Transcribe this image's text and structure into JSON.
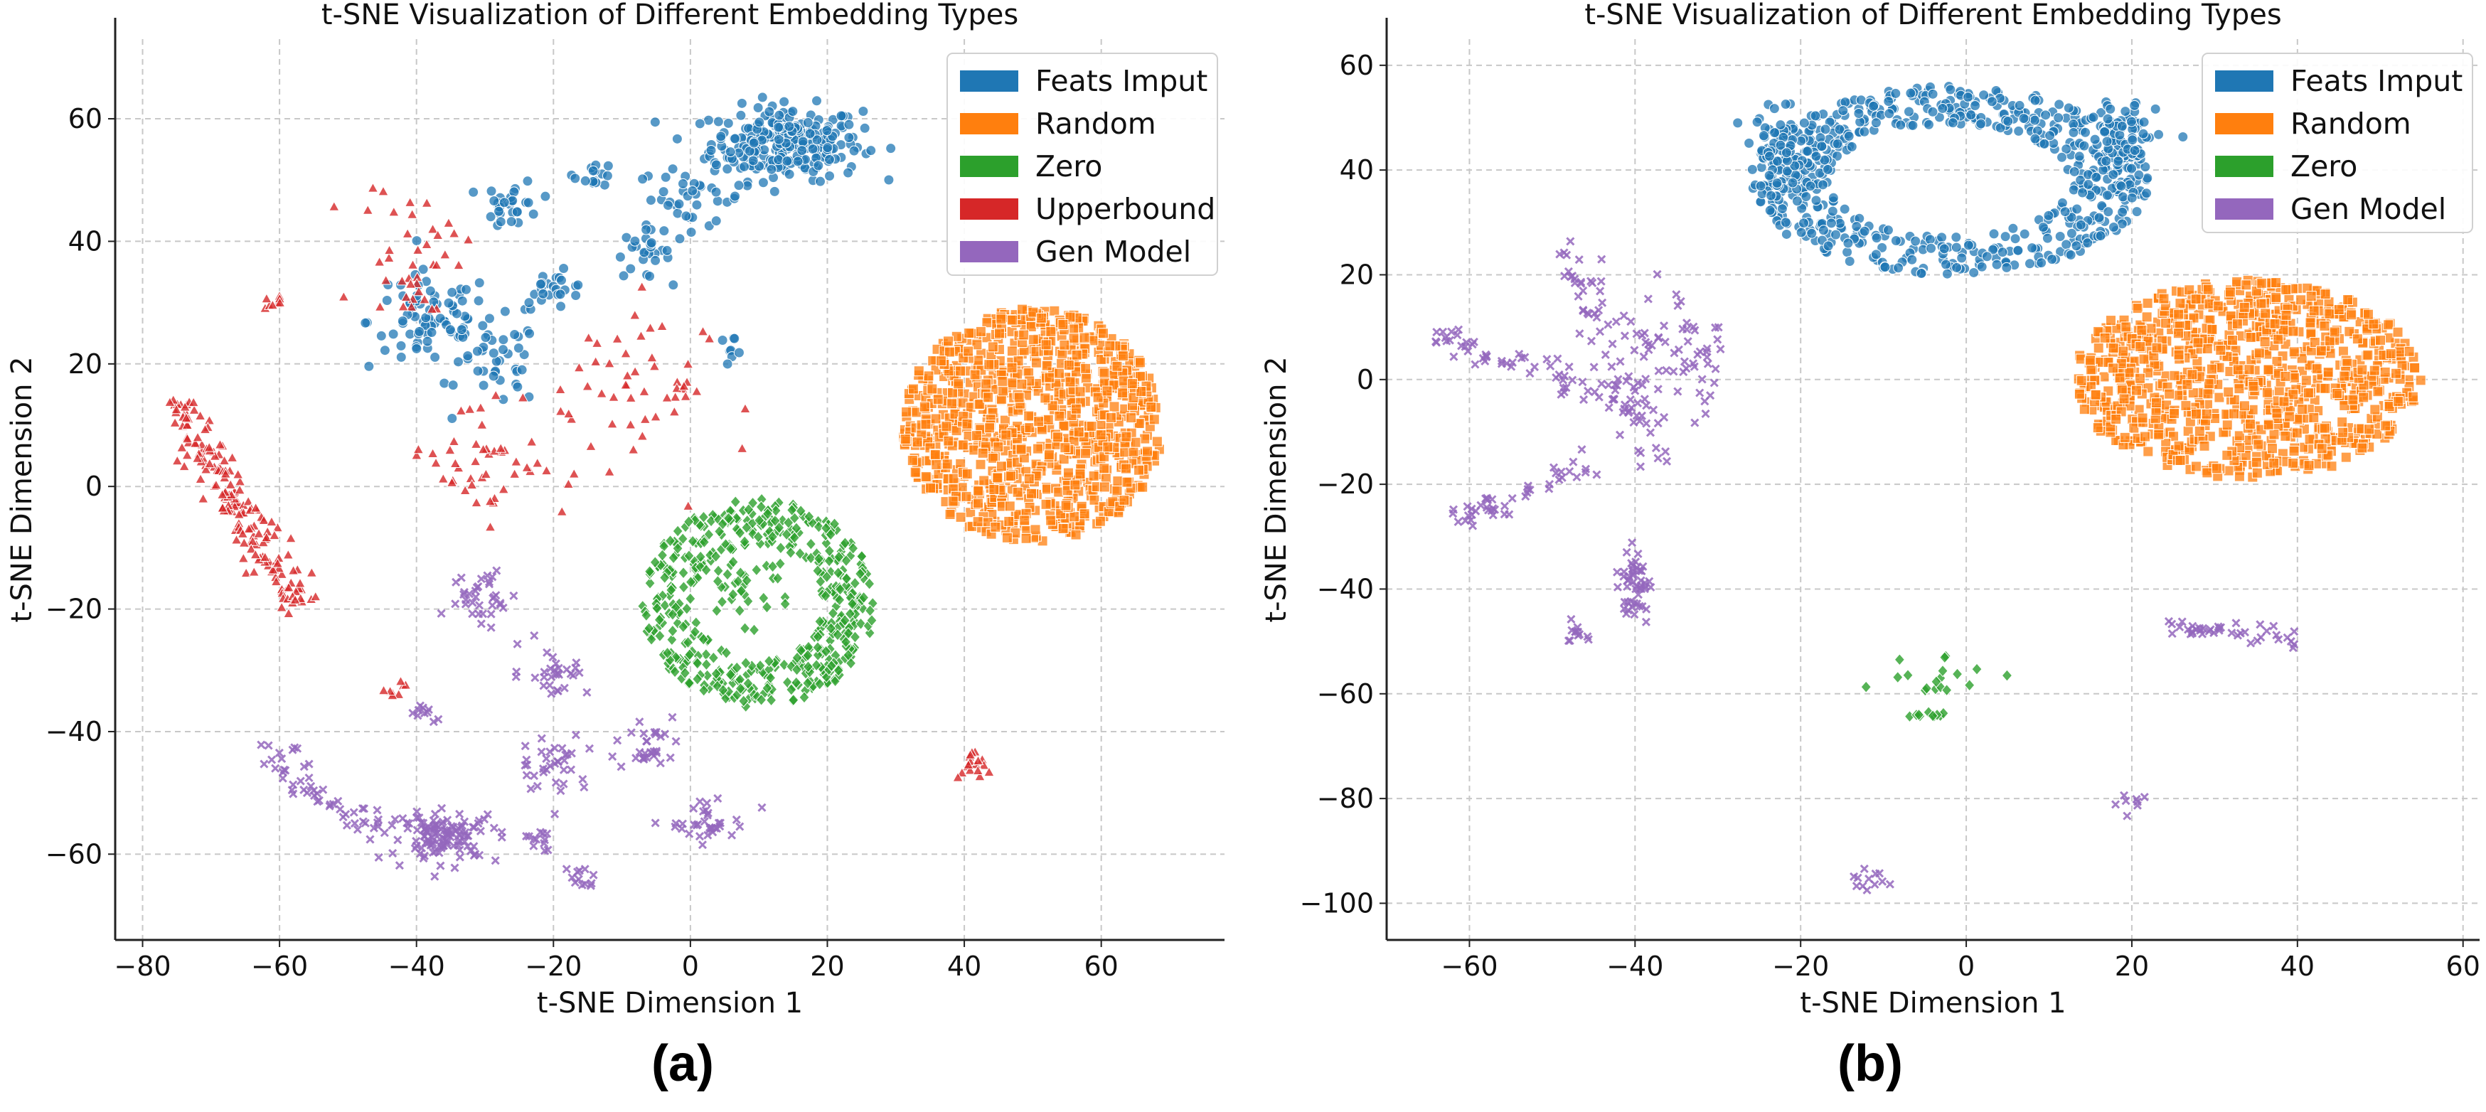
{
  "colors": {
    "Feats Imput": "#1f77b4",
    "Random": "#ff7f0e",
    "Zero": "#2ca02c",
    "Upperbound": "#d62728",
    "Gen Model": "#9467bd"
  },
  "panel_labels": [
    "(a)",
    "(b)"
  ],
  "chart_data": [
    {
      "type": "scatter",
      "title": "t-SNE Visualization of Different Embedding Types",
      "xlabel": "t-SNE Dimension 1",
      "ylabel": "t-SNE Dimension 2",
      "xlim": [
        -84,
        78
      ],
      "ylim": [
        -74,
        73
      ],
      "xticks": [
        -80,
        -60,
        -40,
        -20,
        0,
        20,
        40,
        60
      ],
      "yticks": [
        -60,
        -40,
        -20,
        0,
        20,
        40,
        60
      ],
      "xtick_labels": [
        "−80",
        "−60",
        "−40",
        "−20",
        "0",
        "20",
        "40",
        "60"
      ],
      "ytick_labels": [
        "−60",
        "−40",
        "−20",
        "0",
        "20",
        "40",
        "60"
      ],
      "grid": true,
      "legend_position": "top-right",
      "legend": [
        "Feats Imput",
        "Random",
        "Zero",
        "Upperbound",
        "Gen Model"
      ],
      "series": [
        {
          "name": "Feats Imput",
          "marker": "circle",
          "clusters": [
            {
              "cx": 14,
              "cy": 56,
              "rx": 11,
              "ry": 6,
              "n": 260
            },
            {
              "cx": 0,
              "cy": 47,
              "rx": 8,
              "ry": 5,
              "n": 40
            },
            {
              "cx": -7,
              "cy": 38,
              "rx": 4,
              "ry": 4,
              "n": 25
            },
            {
              "cx": -38,
              "cy": 27,
              "rx": 9,
              "ry": 8,
              "n": 80
            },
            {
              "cx": -28,
              "cy": 20,
              "rx": 6,
              "ry": 7,
              "n": 40
            },
            {
              "cx": -26,
              "cy": 46,
              "rx": 4,
              "ry": 4,
              "n": 30
            },
            {
              "cx": -14,
              "cy": 51,
              "rx": 3,
              "ry": 2,
              "n": 15
            },
            {
              "cx": -20,
              "cy": 32,
              "rx": 5,
              "ry": 3,
              "n": 25
            },
            {
              "cx": 6,
              "cy": 23,
              "rx": 2,
              "ry": 1.5,
              "n": 8
            }
          ]
        },
        {
          "name": "Random",
          "marker": "square",
          "clusters": [
            {
              "cx": 50,
              "cy": 10,
              "rx": 19,
              "ry": 19,
              "n": 900,
              "shape": "disk"
            }
          ]
        },
        {
          "name": "Zero",
          "marker": "diamond",
          "clusters": [
            {
              "cx": 10,
              "cy": -19,
              "rx": 17,
              "ry": 17,
              "n": 500,
              "shape": "ring",
              "inner": 0.55
            },
            {
              "cx": 8,
              "cy": -16,
              "rx": 7,
              "ry": 6,
              "n": 35
            }
          ]
        },
        {
          "name": "Upperbound",
          "marker": "triangle",
          "clusters": [
            {
              "from": [
                -76,
                14
              ],
              "to": [
                -57,
                -20
              ],
              "width": 3,
              "n": 180,
              "shape": "line"
            },
            {
              "cx": -40,
              "cy": 38,
              "rx": 8,
              "ry": 12,
              "n": 40
            },
            {
              "cx": -30,
              "cy": 5,
              "rx": 12,
              "ry": 10,
              "n": 45
            },
            {
              "cx": -12,
              "cy": 15,
              "rx": 14,
              "ry": 17,
              "n": 45
            },
            {
              "cx": -61,
              "cy": 30,
              "rx": 1.5,
              "ry": 1,
              "n": 8
            },
            {
              "cx": 41,
              "cy": -46,
              "rx": 2,
              "ry": 3,
              "n": 18
            },
            {
              "cx": -43,
              "cy": -33,
              "rx": 1.5,
              "ry": 2,
              "n": 8
            },
            {
              "cx": -2,
              "cy": 15,
              "rx": 1.5,
              "ry": 2,
              "n": 8
            }
          ]
        },
        {
          "name": "Gen Model",
          "marker": "x",
          "clusters": [
            {
              "from": [
                -63,
                -42
              ],
              "to": [
                -46,
                -57
              ],
              "width": 3,
              "n": 50,
              "shape": "line"
            },
            {
              "cx": -36,
              "cy": -57,
              "rx": 8,
              "ry": 4,
              "n": 120
            },
            {
              "cx": -30,
              "cy": -18,
              "rx": 5,
              "ry": 5,
              "n": 35
            },
            {
              "cx": -20,
              "cy": -30,
              "rx": 5,
              "ry": 4,
              "n": 30
            },
            {
              "cx": -20,
              "cy": -45,
              "rx": 5,
              "ry": 5,
              "n": 35
            },
            {
              "cx": -6,
              "cy": -42,
              "rx": 5,
              "ry": 5,
              "n": 30
            },
            {
              "cx": 3,
              "cy": -55,
              "rx": 6,
              "ry": 3,
              "n": 35
            },
            {
              "cx": -16,
              "cy": -64,
              "rx": 2,
              "ry": 2,
              "n": 12
            },
            {
              "cx": -39,
              "cy": -37,
              "rx": 2,
              "ry": 2,
              "n": 10
            },
            {
              "cx": -22,
              "cy": -58,
              "rx": 3,
              "ry": 2,
              "n": 12
            }
          ]
        }
      ]
    },
    {
      "type": "scatter",
      "title": "t-SNE Visualization of Different Embedding Types",
      "xlabel": "t-SNE Dimension 1",
      "ylabel": "t-SNE Dimension 2",
      "xlim": [
        -70,
        62
      ],
      "ylim": [
        -107,
        65
      ],
      "xticks": [
        -60,
        -40,
        -20,
        0,
        20,
        40,
        60
      ],
      "yticks": [
        -100,
        -80,
        -60,
        -40,
        -20,
        0,
        20,
        40,
        60
      ],
      "xtick_labels": [
        "−60",
        "−40",
        "−20",
        "0",
        "20",
        "40",
        "60"
      ],
      "ytick_labels": [
        "−100",
        "−80",
        "−60",
        "−40",
        "−20",
        "0",
        "20",
        "40",
        "60"
      ],
      "grid": true,
      "legend_position": "top-right",
      "legend": [
        "Feats Imput",
        "Random",
        "Zero",
        "Gen Model"
      ],
      "series": [
        {
          "name": "Feats Imput",
          "marker": "circle",
          "clusters": [
            {
              "cx": -2,
              "cy": 38,
              "rx": 24,
              "ry": 18,
              "n": 600,
              "shape": "ring",
              "inner": 0.6
            },
            {
              "cx": 19,
              "cy": 46,
              "rx": 4,
              "ry": 8,
              "n": 80
            },
            {
              "cx": -22,
              "cy": 43,
              "rx": 5,
              "ry": 8,
              "n": 80
            }
          ]
        },
        {
          "name": "Random",
          "marker": "square",
          "clusters": [
            {
              "cx": 34,
              "cy": 0,
              "rx": 21,
              "ry": 19,
              "n": 900,
              "shape": "disk"
            }
          ]
        },
        {
          "name": "Zero",
          "marker": "diamond",
          "clusters": [
            {
              "cx": -5,
              "cy": -56,
              "rx": 8,
              "ry": 4,
              "n": 18
            },
            {
              "cx": -5,
              "cy": -64,
              "rx": 3,
              "ry": 1,
              "n": 10
            }
          ]
        },
        {
          "name": "Gen Model",
          "marker": "x",
          "clusters": [
            {
              "from": [
                -64,
                9
              ],
              "to": [
                -40,
                -5
              ],
              "width": 3,
              "n": 60,
              "shape": "line"
            },
            {
              "from": [
                -48,
                27
              ],
              "to": [
                -37,
                -17
              ],
              "width": 3,
              "n": 70,
              "shape": "line"
            },
            {
              "from": [
                -62,
                -27
              ],
              "to": [
                -44,
                -15
              ],
              "width": 2,
              "n": 45,
              "shape": "line"
            },
            {
              "cx": -35,
              "cy": 5,
              "rx": 6,
              "ry": 10,
              "n": 60
            },
            {
              "cx": -40,
              "cy": -40,
              "rx": 2,
              "ry": 7,
              "n": 50
            },
            {
              "cx": -47,
              "cy": -48,
              "rx": 2,
              "ry": 2,
              "n": 12
            },
            {
              "from": [
                24,
                -47
              ],
              "to": [
                40,
                -50
              ],
              "width": 2,
              "n": 40,
              "shape": "line"
            },
            {
              "cx": 20,
              "cy": -81,
              "rx": 2,
              "ry": 2,
              "n": 8
            },
            {
              "cx": -12,
              "cy": -96,
              "rx": 2,
              "ry": 2,
              "n": 12
            }
          ]
        }
      ]
    }
  ]
}
